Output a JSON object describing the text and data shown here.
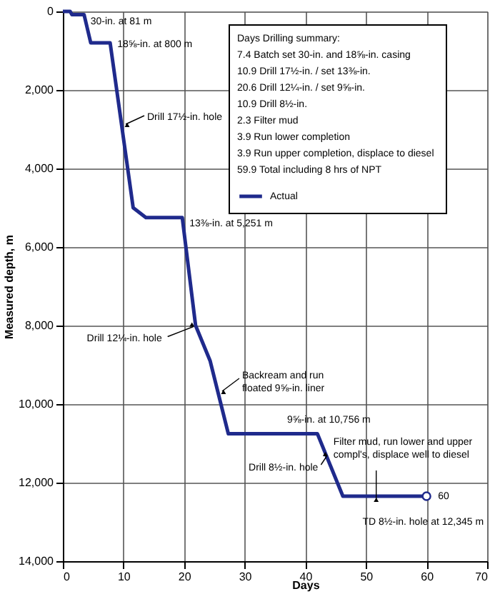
{
  "chart_data": {
    "type": "line",
    "xlabel": "Days",
    "ylabel": "Measured depth, m",
    "xlim": [
      0,
      70
    ],
    "xticks": [
      0,
      10,
      20,
      30,
      40,
      50,
      60,
      70
    ],
    "ylim": [
      14000,
      0
    ],
    "yticks": [
      0,
      {
        "value": 2000,
        "label": "2,000"
      },
      {
        "value": 4000,
        "label": "4,000"
      },
      {
        "value": 6000,
        "label": "6,000"
      },
      {
        "value": 8000,
        "label": "8,000"
      },
      {
        "value": 10000,
        "label": "10,000"
      },
      {
        "value": 12000,
        "label": "12,000"
      },
      {
        "value": 14000,
        "label": "14,000"
      }
    ],
    "grid": true,
    "legend": "top right",
    "line_style": "solid",
    "series": [
      {
        "name": "Actual",
        "color": "#1f2a8c",
        "marker": "none",
        "x": [
          0,
          1.2,
          1.5,
          3.5,
          4.6,
          7.8,
          11.6,
          13.7,
          19.7,
          21.9,
          24.3,
          27.3,
          42,
          46.2,
          60
        ],
        "values": [
          0,
          0,
          81,
          81,
          800,
          800,
          5000,
          5251,
          5251,
          8000,
          8900,
          10756,
          10756,
          12345,
          12345
        ]
      },
      {
        "color": "#1f2a8c",
        "type": "scatter",
        "marker": "circle",
        "x": [
          60
        ],
        "values": [
          12345
        ]
      }
    ],
    "annotations": [
      {
        "text": "30-in. at 81 m",
        "x": 1.5,
        "y": 81
      },
      {
        "text": "18⅝-in. at 800 m",
        "x": 7.8,
        "y": 800
      },
      {
        "text": "Drill 17½-in. hole",
        "x": 9.9,
        "y": 2800
      },
      {
        "text": "13⅜-in. at 5,251 m",
        "x": 19.7,
        "y": 5251
      },
      {
        "text": "Drill 12¼-in. hole",
        "x": 22,
        "y": 8100
      },
      {
        "text": "Backream and run\nfloated 9⅝-in. liner",
        "x": 25.8,
        "y": 9600
      },
      {
        "text": "9⅝-in. at 10,756 m",
        "x": 42,
        "y": 10756
      },
      {
        "text": "Drill 8½-in. hole",
        "x": 44,
        "y": 11400
      },
      {
        "text": "Filter mud, run lower and upper\ncompl's, displace well to diesel",
        "x": 51.7,
        "y": 12345
      },
      {
        "text": "TD 8½-in. hole at 12,345 m",
        "x": 60,
        "y": 12345
      },
      {
        "text": "60",
        "x": 60,
        "y": 12345
      },
      "Days",
      "Drilling summary:",
      "7.4",
      "Batch set 30-in. and 18⅝-in. casing",
      "10.9",
      "Drill 17½-in. / set 13⅜-in.",
      "20.6",
      "Drill 12¼-in. / set 9⅝-in.",
      "10.9",
      "Drill 8½-in.",
      "2.3",
      "Filter mud",
      "3.9",
      "Run lower completion",
      "3.9",
      "Run upper completion, displace to diesel",
      "59.9",
      "Total including 8 hrs of NPT"
    ]
  }
}
